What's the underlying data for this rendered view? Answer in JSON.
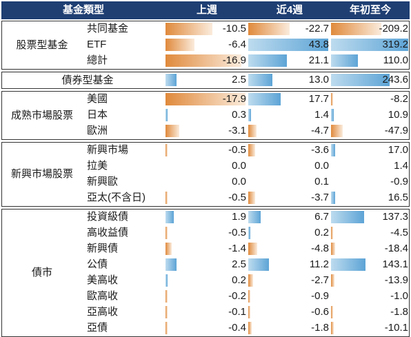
{
  "headers": {
    "category": "基金類型",
    "week": "上週",
    "month4w": "近4週",
    "ytd": "年初至今"
  },
  "colors": {
    "header_bg": "#1f3f73",
    "positive_bar": "#5da4d6",
    "negative_bar": "#e08a3c"
  },
  "groups": [
    {
      "name": "股票型基金",
      "rows": [
        {
          "label": "共同基金",
          "week": "-10.5",
          "m4w": "-22.7",
          "ytd": "-209.2"
        },
        {
          "label": "ETF",
          "week": "-6.4",
          "m4w": "43.8",
          "ytd": "319.2"
        },
        {
          "label": "總計",
          "week": "-16.9",
          "m4w": "21.1",
          "ytd": "110.0"
        }
      ]
    },
    {
      "name": "債券型基金",
      "rows": [
        {
          "label": "",
          "week": "2.5",
          "m4w": "13.0",
          "ytd": "243.6"
        }
      ]
    },
    {
      "name": "成熟市場股票",
      "rows": [
        {
          "label": "美國",
          "week": "-17.9",
          "m4w": "17.7",
          "ytd": "-8.2"
        },
        {
          "label": "日本",
          "week": "0.3",
          "m4w": "1.4",
          "ytd": "10.9"
        },
        {
          "label": "歐洲",
          "week": "-3.1",
          "m4w": "-4.7",
          "ytd": "-47.9"
        }
      ]
    },
    {
      "name": "新興市場股票",
      "rows": [
        {
          "label": "新興市場",
          "week": "-0.5",
          "m4w": "-3.6",
          "ytd": "17.0"
        },
        {
          "label": "拉美",
          "week": "0.0",
          "m4w": "0.0",
          "ytd": "1.4"
        },
        {
          "label": "新興歐",
          "week": "0.0",
          "m4w": "0.1",
          "ytd": "-0.9"
        },
        {
          "label": "亞太(不含日)",
          "week": "-0.5",
          "m4w": "-3.7",
          "ytd": "16.5"
        }
      ]
    },
    {
      "name": "債市",
      "rows": [
        {
          "label": "投資級債",
          "week": "1.9",
          "m4w": "6.7",
          "ytd": "137.3"
        },
        {
          "label": "高收益債",
          "week": "-0.5",
          "m4w": "0.2",
          "ytd": "-4.5"
        },
        {
          "label": "新興債",
          "week": "-1.4",
          "m4w": "-4.8",
          "ytd": "-18.4"
        },
        {
          "label": "公債",
          "week": "2.5",
          "m4w": "11.2",
          "ytd": "143.1"
        },
        {
          "label": "美高收",
          "week": "0.2",
          "m4w": "-2.7",
          "ytd": "-13.9"
        },
        {
          "label": "歐高收",
          "week": "-0.2",
          "m4w": "-0.9",
          "ytd": "-1.0"
        },
        {
          "label": "亞高收",
          "week": "-0.1",
          "m4w": "-0.6",
          "ytd": "-1.8"
        },
        {
          "label": "亞債",
          "week": "-0.4",
          "m4w": "-1.8",
          "ytd": "-10.1"
        }
      ]
    }
  ]
}
